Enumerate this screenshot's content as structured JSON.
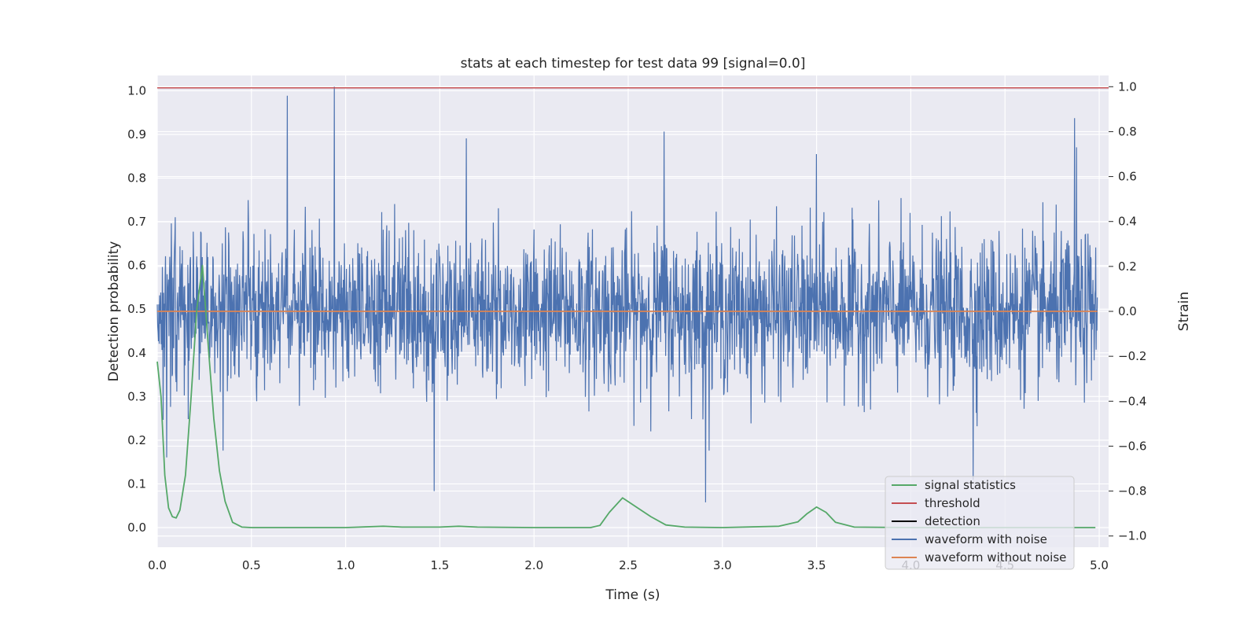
{
  "chart_data": {
    "type": "line",
    "title": "stats at each timestep for test data 99 [signal=0.0]",
    "xlabel": "Time (s)",
    "ylabel": "Detection probability",
    "ylabel_right": "Strain",
    "xlim": [
      0.0,
      5.05
    ],
    "ylim": [
      -0.045,
      1.035
    ],
    "ylim_right": [
      -1.05,
      1.05
    ],
    "x_ticks": [
      "0.0",
      "0.5",
      "1.0",
      "1.5",
      "2.0",
      "2.5",
      "3.0",
      "3.5",
      "4.0",
      "4.5",
      "5.0"
    ],
    "y_ticks": [
      "0.0",
      "0.1",
      "0.2",
      "0.3",
      "0.4",
      "0.5",
      "0.6",
      "0.7",
      "0.8",
      "0.9",
      "1.0"
    ],
    "y_ticks_right": [
      "−1.0",
      "−0.8",
      "−0.6",
      "−0.4",
      "−0.2",
      "0.0",
      "0.2",
      "0.4",
      "0.6",
      "0.8",
      "1.0"
    ],
    "grid": true,
    "legend_position": "lower-right",
    "series": [
      {
        "name": "signal statistics",
        "color": "#55a868",
        "axis": "left",
        "x": [
          0.0,
          0.02,
          0.04,
          0.06,
          0.08,
          0.1,
          0.12,
          0.15,
          0.18,
          0.21,
          0.24,
          0.27,
          0.3,
          0.33,
          0.36,
          0.4,
          0.45,
          0.5,
          1.0,
          1.2,
          1.3,
          1.5,
          1.6,
          1.7,
          2.0,
          2.3,
          2.35,
          2.4,
          2.47,
          2.55,
          2.62,
          2.7,
          2.8,
          3.0,
          3.3,
          3.4,
          3.45,
          3.5,
          3.55,
          3.6,
          3.7,
          4.0,
          4.5,
          4.98
        ],
        "values": [
          0.38,
          0.3,
          0.12,
          0.045,
          0.025,
          0.022,
          0.04,
          0.12,
          0.3,
          0.5,
          0.6,
          0.42,
          0.25,
          0.13,
          0.06,
          0.012,
          0.001,
          0.0,
          0.0,
          0.003,
          0.001,
          0.001,
          0.003,
          0.001,
          0.0,
          0.0,
          0.005,
          0.035,
          0.068,
          0.045,
          0.025,
          0.006,
          0.001,
          0.0,
          0.003,
          0.013,
          0.032,
          0.047,
          0.035,
          0.012,
          0.001,
          0.0,
          0.0,
          0.0
        ]
      },
      {
        "name": "threshold",
        "color": "#c44e52",
        "axis": "right",
        "value": 0.995
      },
      {
        "name": "detection",
        "color": "#000000",
        "axis": "right",
        "values": []
      },
      {
        "name": "waveform with noise",
        "color": "#4c72b0",
        "axis": "right",
        "description": "dense noise, mostly within -0.45 to 0.45",
        "peaks": [
          {
            "x": 0.69,
            "y": 0.96
          },
          {
            "x": 0.94,
            "y": 1.0
          },
          {
            "x": 1.64,
            "y": 0.77
          },
          {
            "x": 2.69,
            "y": 0.8
          },
          {
            "x": 3.5,
            "y": 0.7
          },
          {
            "x": 4.87,
            "y": 0.86
          },
          {
            "x": 4.88,
            "y": 0.73
          },
          {
            "x": 1.47,
            "y": -0.8
          },
          {
            "x": 2.91,
            "y": -0.85
          },
          {
            "x": 4.33,
            "y": -0.75
          },
          {
            "x": 0.05,
            "y": -0.65
          },
          {
            "x": 0.35,
            "y": -0.62
          }
        ]
      },
      {
        "name": "waveform without noise",
        "color": "#dd8452",
        "axis": "right",
        "value": 0.0
      }
    ]
  }
}
